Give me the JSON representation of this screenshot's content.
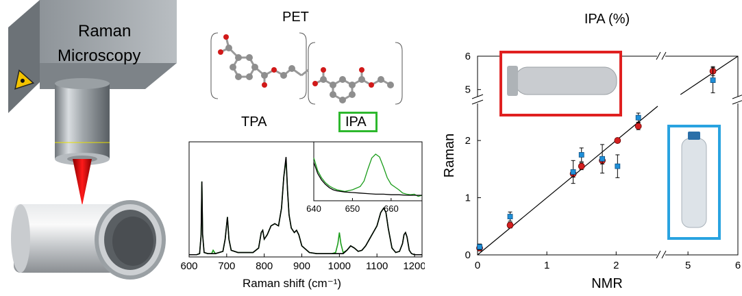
{
  "left_panel": {
    "title_line1": "Raman",
    "title_line2": "Microscopy"
  },
  "molecule": {
    "title": "PET",
    "label_left": "TPA",
    "label_right": "IPA",
    "highlight_color": "#2db82d"
  },
  "chart_data": [
    {
      "type": "line",
      "xlabel": "Raman shift (cm⁻¹)",
      "xlim": [
        600,
        1220
      ],
      "xticks": [
        600,
        700,
        800,
        900,
        1000,
        1100,
        1200
      ],
      "series": [
        {
          "color": "#1a9c1a",
          "x": [
            600,
            610,
            620,
            628,
            632,
            634,
            636,
            640,
            650,
            660,
            664,
            670,
            690,
            696,
            702,
            706,
            712,
            730,
            750,
            770,
            785,
            792,
            796,
            800,
            808,
            818,
            828,
            838,
            846,
            852,
            858,
            862,
            866,
            872,
            880,
            886,
            892,
            900,
            920,
            940,
            960,
            980,
            990,
            996,
            1000,
            1004,
            1010,
            1020,
            1030,
            1040,
            1050,
            1060,
            1070,
            1080,
            1090,
            1100,
            1110,
            1118,
            1124,
            1130,
            1140,
            1150,
            1160,
            1168,
            1172,
            1176,
            1180,
            1186,
            1192,
            1200,
            1220
          ],
          "y": [
            0.02,
            0.02,
            0.02,
            0.03,
            0.2,
            0.68,
            0.2,
            0.04,
            0.03,
            0.03,
            0.06,
            0.03,
            0.05,
            0.16,
            0.36,
            0.16,
            0.06,
            0.04,
            0.04,
            0.04,
            0.08,
            0.22,
            0.24,
            0.16,
            0.2,
            0.28,
            0.3,
            0.28,
            0.44,
            0.72,
            0.88,
            0.6,
            0.38,
            0.26,
            0.22,
            0.24,
            0.2,
            0.1,
            0.04,
            0.03,
            0.03,
            0.03,
            0.04,
            0.12,
            0.22,
            0.12,
            0.04,
            0.06,
            0.1,
            0.08,
            0.05,
            0.06,
            0.1,
            0.16,
            0.22,
            0.28,
            0.4,
            0.44,
            0.4,
            0.26,
            0.08,
            0.04,
            0.05,
            0.12,
            0.2,
            0.22,
            0.18,
            0.06,
            0.03,
            0.02,
            0.02
          ]
        },
        {
          "color": "#000000",
          "x": [
            600,
            610,
            620,
            628,
            632,
            634,
            636,
            640,
            650,
            660,
            664,
            670,
            690,
            696,
            702,
            706,
            712,
            730,
            750,
            770,
            785,
            792,
            796,
            800,
            808,
            818,
            828,
            838,
            846,
            852,
            858,
            862,
            866,
            872,
            880,
            886,
            892,
            900,
            920,
            940,
            960,
            980,
            990,
            996,
            1000,
            1004,
            1010,
            1020,
            1030,
            1040,
            1050,
            1060,
            1070,
            1080,
            1090,
            1100,
            1110,
            1118,
            1124,
            1130,
            1140,
            1150,
            1160,
            1168,
            1172,
            1176,
            1180,
            1186,
            1192,
            1200,
            1220
          ],
          "y": [
            0.02,
            0.02,
            0.02,
            0.03,
            0.2,
            0.68,
            0.2,
            0.04,
            0.03,
            0.03,
            0.03,
            0.03,
            0.05,
            0.16,
            0.36,
            0.16,
            0.06,
            0.04,
            0.04,
            0.04,
            0.08,
            0.22,
            0.24,
            0.16,
            0.2,
            0.28,
            0.3,
            0.28,
            0.44,
            0.72,
            0.9,
            0.6,
            0.38,
            0.26,
            0.22,
            0.24,
            0.2,
            0.1,
            0.04,
            0.03,
            0.03,
            0.03,
            0.03,
            0.03,
            0.03,
            0.03,
            0.03,
            0.06,
            0.1,
            0.08,
            0.05,
            0.06,
            0.1,
            0.16,
            0.22,
            0.28,
            0.4,
            0.44,
            0.4,
            0.26,
            0.08,
            0.04,
            0.05,
            0.12,
            0.2,
            0.22,
            0.18,
            0.06,
            0.03,
            0.02,
            0.02
          ]
        }
      ]
    },
    {
      "type": "line",
      "inset": true,
      "xlim": [
        640,
        668
      ],
      "xticks": [
        640,
        650,
        660
      ],
      "series": [
        {
          "color": "#1a9c1a",
          "x": [
            640,
            641,
            642,
            643,
            644,
            645,
            646,
            648,
            650,
            652,
            653,
            654,
            655,
            656,
            657,
            658,
            659,
            660,
            661,
            662,
            663,
            664,
            665,
            666,
            667,
            668
          ],
          "y": [
            0.78,
            0.55,
            0.42,
            0.33,
            0.27,
            0.23,
            0.2,
            0.17,
            0.2,
            0.26,
            0.36,
            0.58,
            0.78,
            0.85,
            0.8,
            0.62,
            0.42,
            0.3,
            0.25,
            0.2,
            0.14,
            0.12,
            0.11,
            0.12,
            0.08,
            0.1
          ]
        },
        {
          "color": "#000000",
          "x": [
            640,
            641,
            642,
            643,
            644,
            645,
            646,
            648,
            650,
            652,
            654,
            656,
            658,
            660,
            662,
            664,
            666,
            668
          ],
          "y": [
            0.7,
            0.5,
            0.38,
            0.3,
            0.24,
            0.2,
            0.18,
            0.16,
            0.15,
            0.14,
            0.13,
            0.12,
            0.12,
            0.11,
            0.11,
            0.1,
            0.1,
            0.1
          ]
        }
      ]
    },
    {
      "type": "scatter",
      "title": "IPA (%)",
      "xlabel": "NMR",
      "ylabel": "Raman",
      "xticks": [
        "0",
        "1",
        "2",
        "",
        "5",
        "6"
      ],
      "yticks": [
        "0",
        "1",
        "2",
        "5",
        "6"
      ],
      "series": [
        {
          "color": "#d42020",
          "x": [
            0.03,
            0.47,
            1.38,
            1.5,
            1.8,
            2.02,
            2.32,
            5.5
          ],
          "y": [
            0.12,
            0.52,
            1.42,
            1.55,
            1.65,
            2.0,
            2.25,
            5.55
          ],
          "err": [
            0.05,
            0.05,
            0.06,
            0.06,
            0.06,
            0.04,
            0.06,
            0.08
          ]
        },
        {
          "color": "#1f8fd8",
          "x": [
            0.03,
            0.47,
            1.38,
            1.5,
            1.8,
            2.02,
            2.32,
            5.5
          ],
          "y": [
            0.14,
            0.67,
            1.45,
            1.75,
            1.68,
            1.55,
            2.4,
            5.28
          ],
          "err": [
            0.05,
            0.08,
            0.2,
            0.12,
            0.25,
            0.2,
            0.08,
            0.22
          ]
        }
      ],
      "fit_line": true,
      "inset_frames": [
        {
          "color": "#e02020"
        },
        {
          "color": "#29a3e0"
        }
      ]
    }
  ]
}
